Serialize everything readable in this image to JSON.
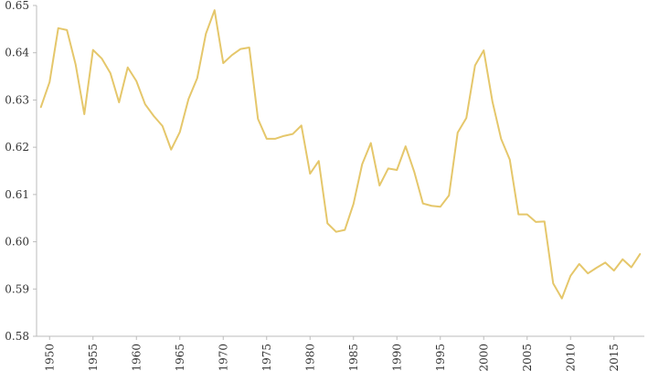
{
  "chart_data": {
    "type": "line",
    "title": "",
    "xlabel": "",
    "ylabel": "",
    "xlim": [
      1948.5,
      2018.5
    ],
    "ylim": [
      0.58,
      0.65
    ],
    "x_ticks": [
      1950,
      1955,
      1960,
      1965,
      1970,
      1975,
      1980,
      1985,
      1990,
      1995,
      2000,
      2005,
      2010,
      2015
    ],
    "y_ticks": [
      0.58,
      0.59,
      0.6,
      0.61,
      0.62,
      0.63,
      0.64,
      0.65
    ],
    "x_tick_labels": [
      "1950",
      "1955",
      "1960",
      "1965",
      "1970",
      "1975",
      "1980",
      "1985",
      "1990",
      "1995",
      "2000",
      "2005",
      "2010",
      "2015"
    ],
    "y_tick_labels": [
      "0.58",
      "0.59",
      "0.60",
      "0.61",
      "0.62",
      "0.63",
      "0.64",
      "0.65"
    ],
    "grid": false,
    "series_color": "#e5c76b",
    "series": [
      {
        "x": [
          1949,
          1950,
          1951,
          1952,
          1953,
          1954,
          1955,
          1956,
          1957,
          1958,
          1959,
          1960,
          1961,
          1962,
          1963,
          1964,
          1965,
          1966,
          1967,
          1968,
          1969,
          1970,
          1971,
          1972,
          1973,
          1974,
          1975,
          1976,
          1977,
          1978,
          1979,
          1980,
          1981,
          1982,
          1983,
          1984,
          1985,
          1986,
          1987,
          1988,
          1989,
          1990,
          1991,
          1992,
          1993,
          1994,
          1995,
          1996,
          1997,
          1998,
          1999,
          2000,
          2001,
          2002,
          2003,
          2004,
          2005,
          2006,
          2007,
          2008,
          2009,
          2010,
          2011,
          2012,
          2013,
          2014,
          2015,
          2016,
          2017,
          2018
        ],
        "values": [
          0.6285,
          0.6338,
          0.6452,
          0.6448,
          0.6375,
          0.627,
          0.6406,
          0.6388,
          0.6357,
          0.6295,
          0.6369,
          0.634,
          0.6291,
          0.6266,
          0.6245,
          0.6195,
          0.6232,
          0.6302,
          0.6346,
          0.644,
          0.649,
          0.6378,
          0.6395,
          0.6408,
          0.6411,
          0.626,
          0.6218,
          0.6218,
          0.6224,
          0.6228,
          0.6246,
          0.6144,
          0.6171,
          0.6039,
          0.6021,
          0.6025,
          0.608,
          0.6164,
          0.6209,
          0.6119,
          0.6155,
          0.6152,
          0.6202,
          0.6148,
          0.6081,
          0.6076,
          0.6074,
          0.6098,
          0.6231,
          0.6262,
          0.6373,
          0.6405,
          0.6297,
          0.6218,
          0.6174,
          0.6058,
          0.6058,
          0.6042,
          0.6043,
          0.5912,
          0.588,
          0.5928,
          0.5953,
          0.5933,
          0.5945,
          0.5956,
          0.5939,
          0.5963,
          0.5946,
          0.5974
        ]
      }
    ]
  }
}
